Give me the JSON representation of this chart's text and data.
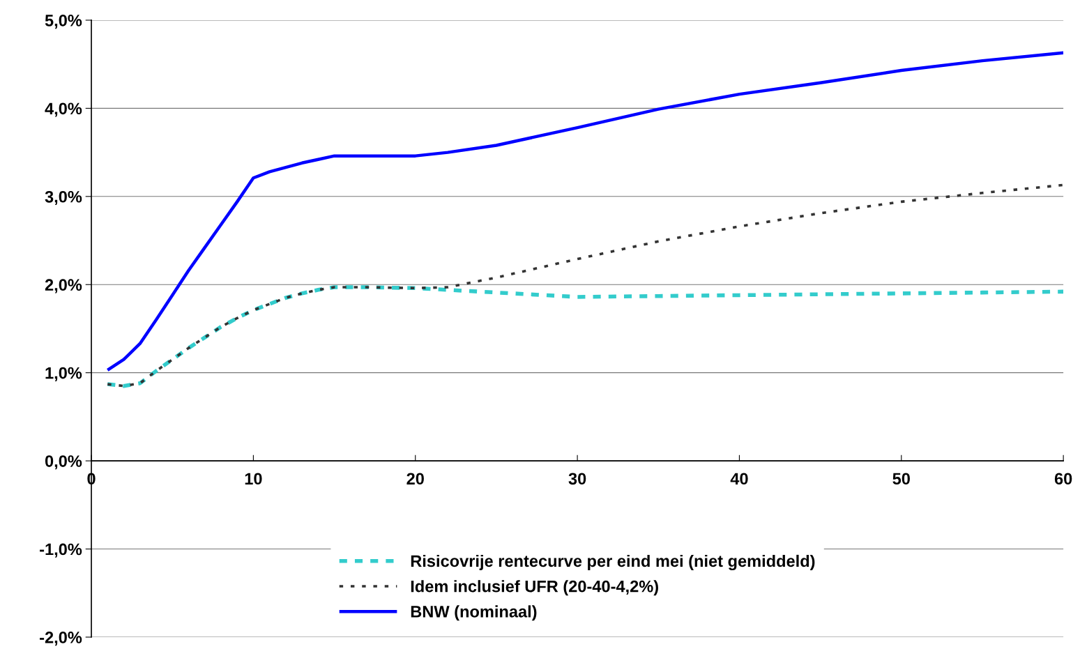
{
  "chart_data": {
    "type": "line",
    "x": [
      1,
      2,
      3,
      4,
      5,
      6,
      7,
      8,
      9,
      10,
      11,
      12,
      13,
      14,
      15,
      17,
      20,
      22,
      25,
      30,
      35,
      40,
      45,
      50,
      55,
      60
    ],
    "series": [
      {
        "name": "Risicovrije rentecurve per eind mei (niet gemiddeld)",
        "color": "#33cccc",
        "line_style": "dashed",
        "values": [
          0.87,
          0.85,
          0.88,
          1.02,
          1.15,
          1.28,
          1.4,
          1.52,
          1.62,
          1.71,
          1.78,
          1.85,
          1.9,
          1.94,
          1.97,
          1.97,
          1.96,
          1.94,
          1.91,
          1.86,
          1.87,
          1.88,
          1.89,
          1.9,
          1.91,
          1.92
        ]
      },
      {
        "name": "Idem inclusief UFR (20-40-4,2%)",
        "color": "#333333",
        "line_style": "dotted",
        "values": [
          0.87,
          0.85,
          0.88,
          1.02,
          1.15,
          1.28,
          1.4,
          1.52,
          1.62,
          1.71,
          1.78,
          1.85,
          1.9,
          1.94,
          1.97,
          1.97,
          1.96,
          1.97,
          2.08,
          2.29,
          2.49,
          2.66,
          2.81,
          2.94,
          3.04,
          3.13
        ]
      },
      {
        "name": "BNW (nominaal)",
        "color": "#0000ff",
        "line_style": "solid",
        "values": [
          1.03,
          1.15,
          1.33,
          1.6,
          1.88,
          2.16,
          2.42,
          2.68,
          2.94,
          3.21,
          3.28,
          3.33,
          3.38,
          3.42,
          3.46,
          3.46,
          3.46,
          3.5,
          3.58,
          3.78,
          3.99,
          4.16,
          4.29,
          4.43,
          4.54,
          4.63
        ]
      }
    ],
    "xlim": [
      0,
      60
    ],
    "xticks": [
      0,
      10,
      20,
      30,
      40,
      50,
      60
    ],
    "ylim": [
      -2,
      5
    ],
    "yticks": [
      {
        "value": -2,
        "label": "-2,0%"
      },
      {
        "value": -1,
        "label": "-1,0%"
      },
      {
        "value": 0,
        "label": "0,0%"
      },
      {
        "value": 1,
        "label": "1,0%"
      },
      {
        "value": 2,
        "label": "2,0%"
      },
      {
        "value": 3,
        "label": "3,0%"
      },
      {
        "value": 4,
        "label": "4,0%"
      },
      {
        "value": 5,
        "label": "5,0%"
      }
    ],
    "grid": "y",
    "legend": "bottom",
    "marker": "none"
  }
}
